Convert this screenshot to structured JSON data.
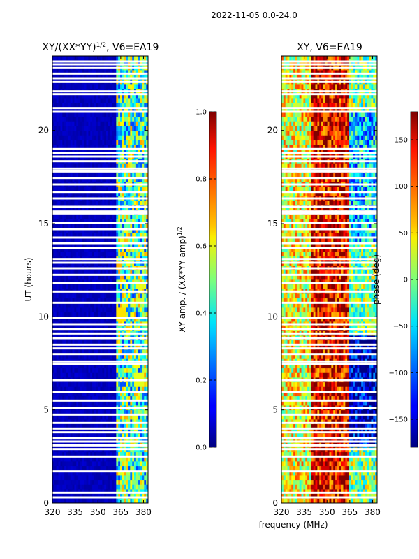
{
  "figure": {
    "suptitle": "2022-11-05 0.0-24.0",
    "xlabel": "frequency (MHz)"
  },
  "chart_data": [
    {
      "type": "heatmap",
      "title": "XY/(XX*YY)",
      "title_sup": "1/2",
      "title_suffix": ", V6=EA19",
      "xlabel": "",
      "ylabel": "UT (hours)",
      "x_ticks": [
        320,
        335,
        350,
        365,
        380
      ],
      "x_tick_labels": [
        "320",
        "335",
        "350",
        "365",
        "380"
      ],
      "xlim": [
        320,
        383
      ],
      "y_ticks": [
        0,
        5,
        10,
        15,
        20
      ],
      "y_tick_labels": [
        "0",
        "5",
        "10",
        "15",
        "20"
      ],
      "ylim": [
        0,
        24
      ],
      "colormap": "jet",
      "colorbar": {
        "label": "XY amp. / (XX*YY amp)",
        "label_sup": "1/2",
        "range": [
          0.0,
          1.0
        ],
        "ticks": [
          0.0,
          0.2,
          0.4,
          0.6,
          0.8,
          1.0
        ],
        "tick_labels": [
          "0.0",
          "0.2",
          "0.4",
          "0.6",
          "0.8",
          "1.0"
        ]
      },
      "freq_bands": [
        {
          "range": [
            320,
            362
          ],
          "level": 0.06
        },
        {
          "range": [
            362,
            383
          ],
          "level": 0.45
        }
      ],
      "notable_values": [
        {
          "time_range": [
            9.8,
            10.5
          ],
          "freq_range": [
            362,
            368
          ],
          "value": 0.65
        },
        {
          "time_range": [
            12.6,
            13.1
          ],
          "freq_range": [
            362,
            366
          ],
          "value": 0.7
        },
        {
          "time_range": [
            6.2,
            7.0
          ],
          "freq_range": [
            374,
            381
          ],
          "value": 0.6
        }
      ]
    },
    {
      "type": "heatmap",
      "title": "XY, V6=EA19",
      "xlabel": "",
      "ylabel": "",
      "x_ticks": [
        320,
        335,
        350,
        365,
        380
      ],
      "x_tick_labels": [
        "320",
        "335",
        "350",
        "365",
        "380"
      ],
      "xlim": [
        320,
        383
      ],
      "y_ticks": [
        0,
        5,
        10,
        15,
        20
      ],
      "y_tick_labels": [
        "0",
        "5",
        "10",
        "15",
        "20"
      ],
      "ylim": [
        0,
        24
      ],
      "colormap": "jet",
      "colorbar": {
        "label": "phase (deg)",
        "range": [
          -180,
          180
        ],
        "ticks": [
          -150,
          -100,
          -50,
          0,
          50,
          100,
          150
        ],
        "tick_labels": [
          "−150",
          "−100",
          "−50",
          "0",
          "50",
          "100",
          "150"
        ]
      },
      "phase_regions": [
        {
          "time_range": [
            0,
            24
          ],
          "freq_range": [
            320,
            340
          ],
          "phase_deg": 40
        },
        {
          "time_range": [
            0,
            24
          ],
          "freq_range": [
            340,
            365
          ],
          "phase_deg": 140
        },
        {
          "time_range": [
            3,
            9
          ],
          "freq_range": [
            365,
            383
          ],
          "phase_deg": -150
        },
        {
          "time_range": [
            14,
            21
          ],
          "freq_range": [
            365,
            383
          ],
          "phase_deg": -60
        }
      ]
    }
  ],
  "data_gaps_hours": [
    0.3,
    0.55,
    1.7,
    2.5,
    2.9,
    3.1,
    3.3,
    3.5,
    3.8,
    4.0,
    4.3,
    4.75,
    5.1,
    5.5,
    5.95,
    6.6,
    7.45,
    7.6,
    8.0,
    8.3,
    8.5,
    8.85,
    9.1,
    9.35,
    9.6,
    9.95,
    10.75,
    11.35,
    11.8,
    12.25,
    12.6,
    12.9,
    13.1,
    13.7,
    13.95,
    14.25,
    14.7,
    15.05,
    15.55,
    15.65,
    15.9,
    16.35,
    16.7,
    17.1,
    17.45,
    17.8,
    17.95,
    18.35,
    18.6,
    18.8,
    19.0,
    21.0,
    21.2,
    21.95,
    22.1,
    22.6,
    22.8,
    23.05,
    23.35,
    23.55,
    23.7
  ]
}
